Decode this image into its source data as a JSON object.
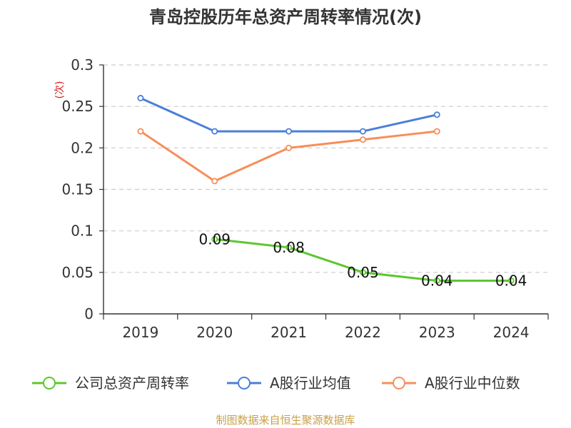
{
  "chart_data": {
    "type": "line",
    "title": "青岛控股历年总资产周转率情况(次)",
    "ylabel": "(次)",
    "categories": [
      "2019",
      "2020",
      "2021",
      "2022",
      "2023",
      "2024"
    ],
    "ylim": [
      0,
      0.3
    ],
    "yticks": [
      "0",
      "0.05",
      "0.1",
      "0.15",
      "0.2",
      "0.25",
      "0.3"
    ],
    "grid": true,
    "legend_position": "bottom",
    "series": [
      {
        "name": "公司总资产周转率",
        "color": "#5cc730",
        "values": [
          null,
          0.09,
          0.08,
          0.05,
          0.04,
          0.04
        ],
        "labels": [
          "",
          "0.09",
          "0.08",
          "0.05",
          "0.04",
          "0.04"
        ]
      },
      {
        "name": "A股行业均值",
        "color": "#4a7fd8",
        "values": [
          0.26,
          0.22,
          0.22,
          0.22,
          0.24,
          null
        ]
      },
      {
        "name": "A股行业中位数",
        "color": "#f78e5a",
        "values": [
          0.22,
          0.16,
          0.2,
          0.21,
          0.22,
          null
        ]
      }
    ]
  },
  "footer": {
    "source": "制图数据来自恒生聚源数据库"
  }
}
